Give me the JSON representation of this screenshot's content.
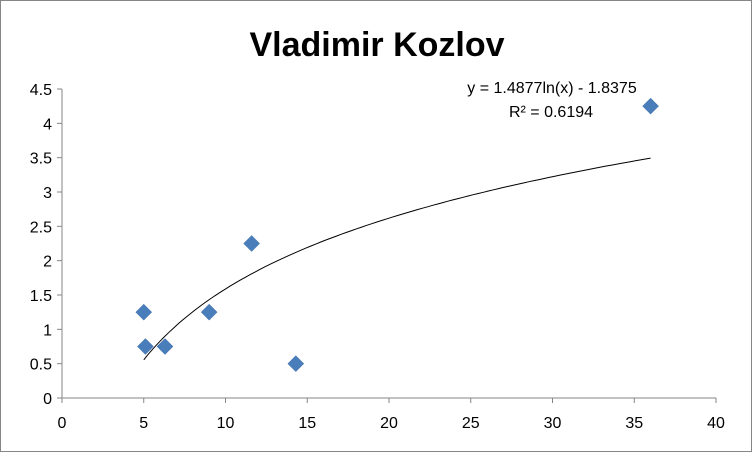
{
  "chart_data": {
    "type": "scatter",
    "title": "Vladimir Kozlov",
    "xlabel": "",
    "ylabel": "",
    "xlim": [
      0,
      40
    ],
    "ylim": [
      0,
      4.5
    ],
    "x_ticks": [
      "0",
      "5",
      "10",
      "15",
      "20",
      "25",
      "30",
      "35",
      "40"
    ],
    "y_ticks": [
      "0",
      "0.5",
      "1",
      "1.5",
      "2",
      "2.5",
      "3",
      "3.5",
      "4",
      "4.5"
    ],
    "grid": false,
    "legend": "none",
    "points": [
      {
        "x": 5,
        "y": 1.25
      },
      {
        "x": 5.1,
        "y": 0.75
      },
      {
        "x": 6.3,
        "y": 0.75
      },
      {
        "x": 9,
        "y": 1.25
      },
      {
        "x": 11.6,
        "y": 2.25
      },
      {
        "x": 14.3,
        "y": 0.5
      },
      {
        "x": 36,
        "y": 4.25
      }
    ],
    "marker": "diamond",
    "marker_color": "#4a7ebb",
    "trendline": {
      "type": "logarithmic",
      "a": 1.4877,
      "b": -1.8375,
      "x_range": [
        5,
        36
      ],
      "color": "#000000",
      "equation_label": "y = 1.4877ln(x) - 1.8375",
      "r2_label": "R² = 0.6194"
    }
  }
}
